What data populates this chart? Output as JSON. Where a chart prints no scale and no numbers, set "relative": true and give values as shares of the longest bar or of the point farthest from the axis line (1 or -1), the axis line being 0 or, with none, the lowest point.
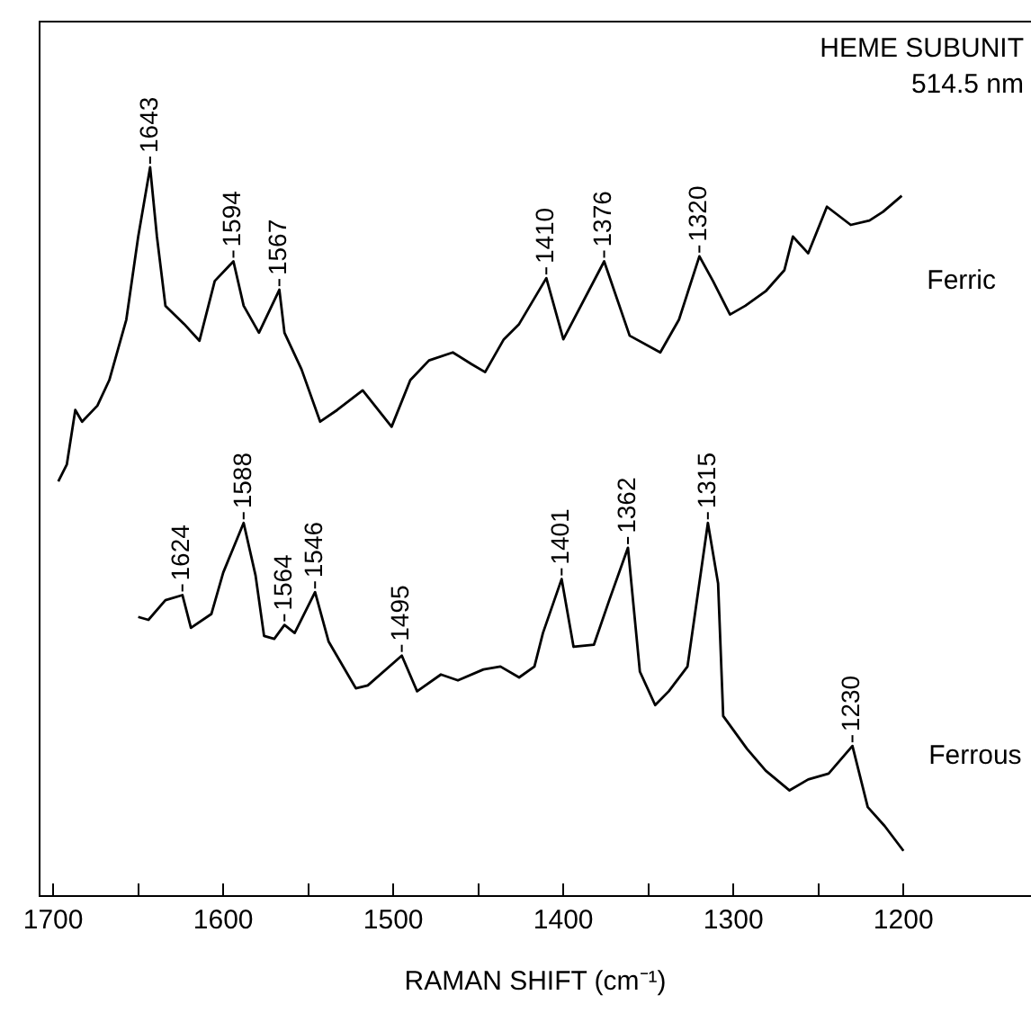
{
  "chart_data": {
    "type": "line",
    "title": "HEME SUBUNIT",
    "subtitle": "514.5 nm",
    "xlabel": "RAMAN SHIFT (cm⁻¹)",
    "relative": true,
    "legend": false,
    "marker": "none",
    "line_style": "solid",
    "grid": false,
    "xlim": [
      1708,
      1125
    ],
    "xticks": [
      1700,
      {
        "value": 1650,
        "label": null
      },
      1600,
      {
        "value": 1550,
        "label": null
      },
      1500,
      {
        "value": 1450,
        "label": null
      },
      1400,
      {
        "value": 1350,
        "label": null
      },
      1300,
      {
        "value": 1250,
        "label": null
      },
      1200
    ],
    "series": [
      {
        "name": "Ferric",
        "color": "#000000",
        "x": [
          1697,
          1692,
          1687,
          1683,
          1674,
          1667,
          1657,
          1650,
          1643,
          1639,
          1634,
          1623,
          1614,
          1605,
          1594,
          1588,
          1579,
          1567,
          1564,
          1554,
          1543,
          1533,
          1518,
          1501,
          1490,
          1479,
          1465,
          1454,
          1446,
          1435,
          1426,
          1410,
          1400,
          1376,
          1361,
          1343,
          1332,
          1320,
          1312,
          1302,
          1293,
          1281,
          1270,
          1265,
          1256,
          1245,
          1231,
          1220,
          1212,
          1201
        ],
        "values": [
          0.569,
          0.592,
          0.667,
          0.651,
          0.673,
          0.708,
          0.791,
          0.905,
          1,
          0.905,
          0.81,
          0.785,
          0.762,
          0.844,
          0.871,
          0.81,
          0.773,
          0.832,
          0.773,
          0.723,
          0.651,
          0.667,
          0.694,
          0.644,
          0.708,
          0.735,
          0.746,
          0.73,
          0.719,
          0.764,
          0.785,
          0.848,
          0.764,
          0.871,
          0.769,
          0.746,
          0.791,
          0.878,
          0.844,
          0.798,
          0.81,
          0.83,
          0.859,
          0.905,
          0.882,
          0.946,
          0.921,
          0.927,
          0.939,
          0.961
        ]
      },
      {
        "name": "Ferrous",
        "color": "#000000",
        "x": [
          1650,
          1644,
          1634,
          1624,
          1619,
          1607,
          1600,
          1588,
          1581,
          1576,
          1570,
          1564,
          1558,
          1546,
          1538,
          1522,
          1515,
          1495,
          1486,
          1472,
          1462,
          1447,
          1437,
          1426,
          1417,
          1412,
          1401,
          1394,
          1382,
          1373,
          1362,
          1355,
          1346,
          1338,
          1327,
          1315,
          1309,
          1306,
          1292,
          1281,
          1267,
          1256,
          1244,
          1230,
          1221,
          1211,
          1200
        ],
        "values": [
          0.383,
          0.379,
          0.406,
          0.413,
          0.368,
          0.387,
          0.444,
          0.512,
          0.44,
          0.357,
          0.353,
          0.372,
          0.361,
          0.417,
          0.349,
          0.285,
          0.289,
          0.33,
          0.281,
          0.304,
          0.296,
          0.311,
          0.315,
          0.3,
          0.315,
          0.361,
          0.435,
          0.342,
          0.345,
          0.406,
          0.478,
          0.308,
          0.262,
          0.281,
          0.315,
          0.512,
          0.429,
          0.247,
          0.202,
          0.172,
          0.145,
          0.16,
          0.168,
          0.206,
          0.122,
          0.096,
          0.062
        ]
      }
    ],
    "annotations": [
      {
        "text": "1643",
        "x": 1643,
        "y": 1
      },
      {
        "text": "1594",
        "x": 1594,
        "y": 0.871
      },
      {
        "text": "1567",
        "x": 1567,
        "y": 0.832
      },
      {
        "text": "1410",
        "x": 1410,
        "y": 0.848
      },
      {
        "text": "1376",
        "x": 1376,
        "y": 0.871
      },
      {
        "text": "1320",
        "x": 1320,
        "y": 0.878
      },
      {
        "text": "1624",
        "x": 1624,
        "y": 0.413
      },
      {
        "text": "1588",
        "x": 1588,
        "y": 0.512
      },
      {
        "text": "1564",
        "x": 1564,
        "y": 0.372
      },
      {
        "text": "1546",
        "x": 1546,
        "y": 0.417
      },
      {
        "text": "1495",
        "x": 1495,
        "y": 0.33
      },
      {
        "text": "1401",
        "x": 1401,
        "y": 0.435
      },
      {
        "text": "1362",
        "x": 1362,
        "y": 0.478
      },
      {
        "text": "1315",
        "x": 1315,
        "y": 0.512
      },
      {
        "text": "1230",
        "x": 1230,
        "y": 0.206
      }
    ]
  }
}
